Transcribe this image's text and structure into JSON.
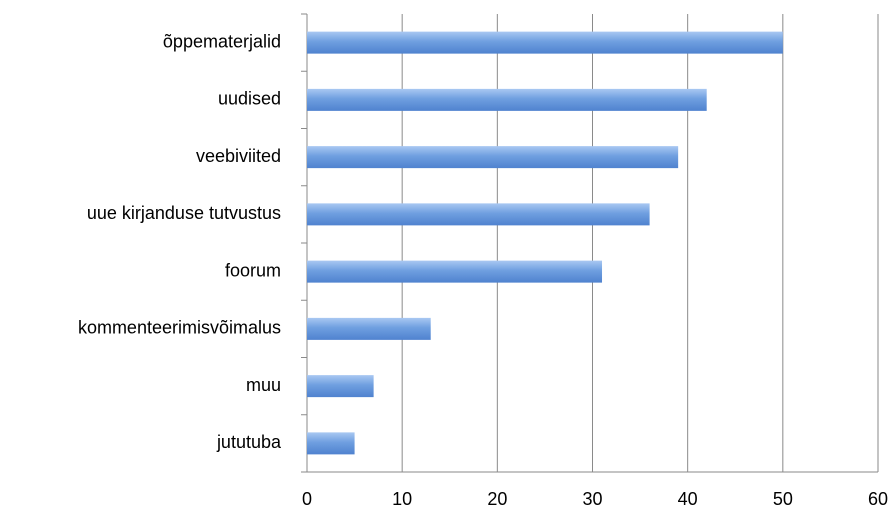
{
  "chart_data": {
    "type": "barh",
    "categories": [
      "õppematerjalid",
      "uudised",
      "veebiviited",
      "uue kirjanduse tutvustus",
      "foorum",
      "kommenteerimisvõimalus",
      "muu",
      "jututuba"
    ],
    "values": [
      50,
      42,
      39,
      36,
      31,
      13,
      7,
      5
    ],
    "color": "#6f9fe0",
    "xlim": [
      0,
      60
    ],
    "xticks": [
      0,
      10,
      20,
      30,
      40,
      50,
      60
    ],
    "grid": true
  }
}
